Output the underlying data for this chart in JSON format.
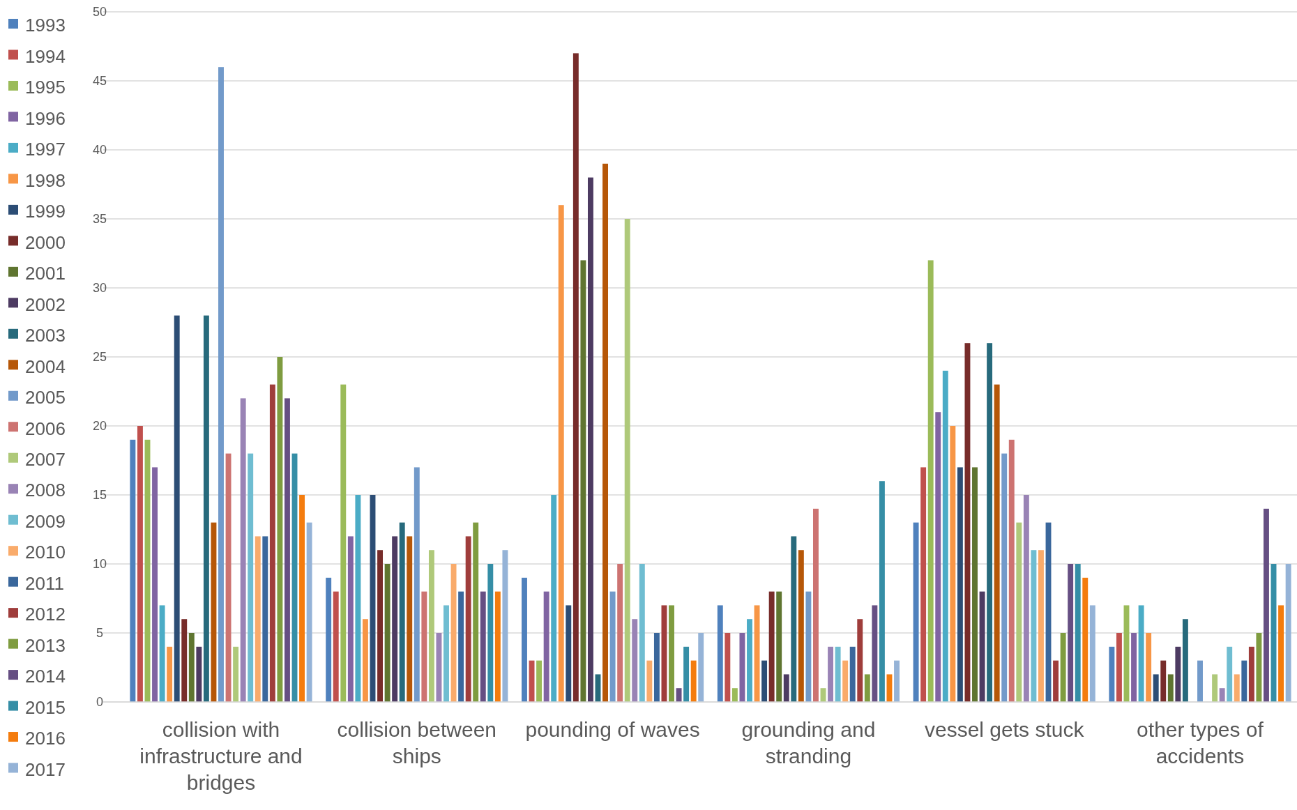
{
  "chart_data": {
    "type": "bar",
    "categories": [
      "collision with infrastructure and bridges",
      "collision between ships",
      "pounding of waves",
      "grounding and stranding",
      "vessel gets stuck",
      "other types of accidents"
    ],
    "ylim": [
      0,
      50
    ],
    "yticks": [
      0,
      5,
      10,
      15,
      20,
      25,
      30,
      35,
      40,
      45,
      50
    ],
    "grid": "y",
    "legend": "left",
    "series": [
      {
        "name": "1993",
        "color": "#4f81bd",
        "values": [
          19,
          9,
          9,
          7,
          13,
          4
        ]
      },
      {
        "name": "1994",
        "color": "#c0504d",
        "values": [
          20,
          8,
          3,
          5,
          17,
          5
        ]
      },
      {
        "name": "1995",
        "color": "#9bbb59",
        "values": [
          19,
          23,
          3,
          1,
          32,
          7
        ]
      },
      {
        "name": "1996",
        "color": "#8064a2",
        "values": [
          17,
          12,
          8,
          5,
          21,
          5
        ]
      },
      {
        "name": "1997",
        "color": "#4bacc6",
        "values": [
          7,
          15,
          15,
          6,
          24,
          7
        ]
      },
      {
        "name": "1998",
        "color": "#f79646",
        "values": [
          4,
          6,
          36,
          7,
          20,
          5
        ]
      },
      {
        "name": "1999",
        "color": "#2c4d75",
        "values": [
          28,
          15,
          7,
          3,
          17,
          2
        ]
      },
      {
        "name": "2000",
        "color": "#772c2a",
        "values": [
          6,
          11,
          47,
          8,
          26,
          3
        ]
      },
      {
        "name": "2001",
        "color": "#5f7530",
        "values": [
          5,
          10,
          32,
          8,
          17,
          2
        ]
      },
      {
        "name": "2002",
        "color": "#4d3b62",
        "values": [
          4,
          12,
          38,
          2,
          8,
          4
        ]
      },
      {
        "name": "2003",
        "color": "#276a7c",
        "values": [
          28,
          13,
          2,
          12,
          26,
          6
        ]
      },
      {
        "name": "2004",
        "color": "#b65708",
        "values": [
          13,
          12,
          39,
          11,
          23,
          0
        ]
      },
      {
        "name": "2005",
        "color": "#729aca",
        "values": [
          46,
          17,
          8,
          8,
          18,
          3
        ]
      },
      {
        "name": "2006",
        "color": "#cd7371",
        "values": [
          18,
          8,
          10,
          14,
          19,
          0
        ]
      },
      {
        "name": "2007",
        "color": "#afc97a",
        "values": [
          4,
          11,
          35,
          1,
          13,
          2
        ]
      },
      {
        "name": "2008",
        "color": "#9983b5",
        "values": [
          22,
          5,
          6,
          4,
          15,
          1
        ]
      },
      {
        "name": "2009",
        "color": "#6fbdd1",
        "values": [
          18,
          7,
          10,
          4,
          11,
          4
        ]
      },
      {
        "name": "2010",
        "color": "#f9ab6b",
        "values": [
          12,
          10,
          3,
          3,
          11,
          2
        ]
      },
      {
        "name": "2011",
        "color": "#3a679c",
        "values": [
          12,
          8,
          5,
          4,
          13,
          3
        ]
      },
      {
        "name": "2012",
        "color": "#9f3d3b",
        "values": [
          23,
          12,
          7,
          6,
          3,
          4
        ]
      },
      {
        "name": "2013",
        "color": "#7f9c40",
        "values": [
          25,
          13,
          7,
          2,
          5,
          5
        ]
      },
      {
        "name": "2014",
        "color": "#664f83",
        "values": [
          22,
          8,
          1,
          7,
          10,
          14
        ]
      },
      {
        "name": "2015",
        "color": "#358ea6",
        "values": [
          18,
          10,
          4,
          16,
          10,
          10
        ]
      },
      {
        "name": "2016",
        "color": "#f47c0e",
        "values": [
          15,
          8,
          3,
          2,
          9,
          7
        ]
      },
      {
        "name": "2017",
        "color": "#95b3d7",
        "values": [
          13,
          11,
          5,
          3,
          7,
          10
        ]
      }
    ]
  }
}
